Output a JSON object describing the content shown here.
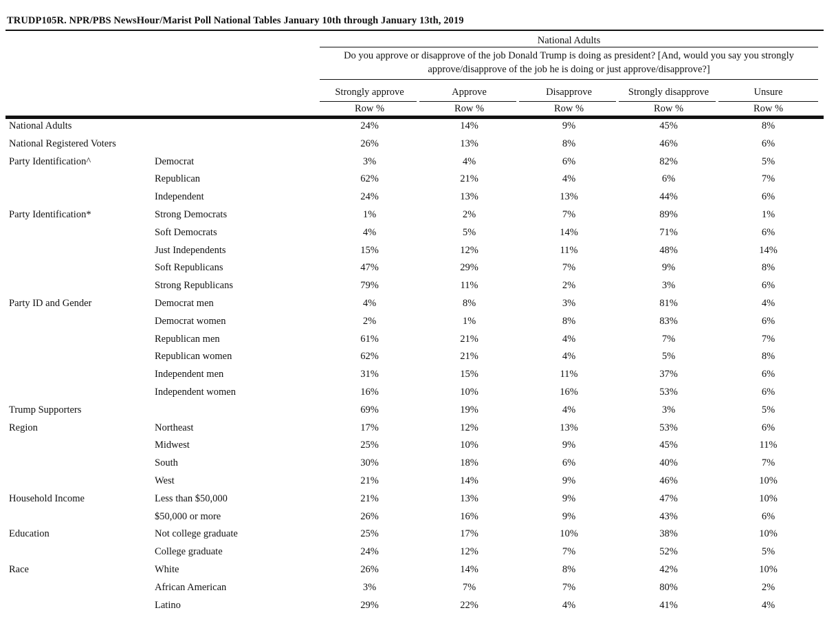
{
  "title": "TRUDP105R. NPR/PBS NewsHour/Marist Poll National Tables January 10th through January 13th, 2019",
  "group_header": "National Adults",
  "question_line1": "Do you approve or disapprove of the job Donald Trump is doing as president? [And, would you say you strongly",
  "question_line2": "approve/disapprove of the job he is doing or just approve/disapprove?]",
  "columns": [
    "Strongly approve",
    "Approve",
    "Disapprove",
    "Strongly disapprove",
    "Unsure"
  ],
  "col_sub": "Row %",
  "rows": [
    {
      "group": "National Adults",
      "sub": "",
      "values": [
        "24%",
        "14%",
        "9%",
        "45%",
        "8%"
      ]
    },
    {
      "group": "National Registered Voters",
      "sub": "",
      "values": [
        "26%",
        "13%",
        "8%",
        "46%",
        "6%"
      ]
    },
    {
      "group": "Party Identification^",
      "sub": "Democrat",
      "values": [
        "3%",
        "4%",
        "6%",
        "82%",
        "5%"
      ]
    },
    {
      "group": "",
      "sub": "Republican",
      "values": [
        "62%",
        "21%",
        "4%",
        "6%",
        "7%"
      ]
    },
    {
      "group": "",
      "sub": "Independent",
      "values": [
        "24%",
        "13%",
        "13%",
        "44%",
        "6%"
      ]
    },
    {
      "group": "Party Identification*",
      "sub": "Strong Democrats",
      "values": [
        "1%",
        "2%",
        "7%",
        "89%",
        "1%"
      ]
    },
    {
      "group": "",
      "sub": "Soft Democrats",
      "values": [
        "4%",
        "5%",
        "14%",
        "71%",
        "6%"
      ]
    },
    {
      "group": "",
      "sub": "Just Independents",
      "values": [
        "15%",
        "12%",
        "11%",
        "48%",
        "14%"
      ]
    },
    {
      "group": "",
      "sub": "Soft Republicans",
      "values": [
        "47%",
        "29%",
        "7%",
        "9%",
        "8%"
      ]
    },
    {
      "group": "",
      "sub": "Strong Republicans",
      "values": [
        "79%",
        "11%",
        "2%",
        "3%",
        "6%"
      ]
    },
    {
      "group": "Party ID and Gender",
      "sub": "Democrat men",
      "values": [
        "4%",
        "8%",
        "3%",
        "81%",
        "4%"
      ]
    },
    {
      "group": "",
      "sub": "Democrat women",
      "values": [
        "2%",
        "1%",
        "8%",
        "83%",
        "6%"
      ]
    },
    {
      "group": "",
      "sub": "Republican men",
      "values": [
        "61%",
        "21%",
        "4%",
        "7%",
        "7%"
      ]
    },
    {
      "group": "",
      "sub": "Republican women",
      "values": [
        "62%",
        "21%",
        "4%",
        "5%",
        "8%"
      ]
    },
    {
      "group": "",
      "sub": "Independent men",
      "values": [
        "31%",
        "15%",
        "11%",
        "37%",
        "6%"
      ]
    },
    {
      "group": "",
      "sub": "Independent women",
      "values": [
        "16%",
        "10%",
        "16%",
        "53%",
        "6%"
      ]
    },
    {
      "group": "Trump Supporters",
      "sub": "",
      "values": [
        "69%",
        "19%",
        "4%",
        "3%",
        "5%"
      ]
    },
    {
      "group": "Region",
      "sub": "Northeast",
      "values": [
        "17%",
        "12%",
        "13%",
        "53%",
        "6%"
      ]
    },
    {
      "group": "",
      "sub": "Midwest",
      "values": [
        "25%",
        "10%",
        "9%",
        "45%",
        "11%"
      ]
    },
    {
      "group": "",
      "sub": "South",
      "values": [
        "30%",
        "18%",
        "6%",
        "40%",
        "7%"
      ]
    },
    {
      "group": "",
      "sub": "West",
      "values": [
        "21%",
        "14%",
        "9%",
        "46%",
        "10%"
      ]
    },
    {
      "group": "Household Income",
      "sub": "Less than $50,000",
      "values": [
        "21%",
        "13%",
        "9%",
        "47%",
        "10%"
      ]
    },
    {
      "group": "",
      "sub": "$50,000 or more",
      "values": [
        "26%",
        "16%",
        "9%",
        "43%",
        "6%"
      ]
    },
    {
      "group": "Education",
      "sub": "Not college graduate",
      "values": [
        "25%",
        "17%",
        "10%",
        "38%",
        "10%"
      ]
    },
    {
      "group": "",
      "sub": "College graduate",
      "values": [
        "24%",
        "12%",
        "7%",
        "52%",
        "5%"
      ]
    },
    {
      "group": "Race",
      "sub": "White",
      "values": [
        "26%",
        "14%",
        "8%",
        "42%",
        "10%"
      ]
    },
    {
      "group": "",
      "sub": "African American",
      "values": [
        "3%",
        "7%",
        "7%",
        "80%",
        "2%"
      ]
    },
    {
      "group": "",
      "sub": "Latino",
      "values": [
        "29%",
        "22%",
        "4%",
        "41%",
        "4%"
      ]
    }
  ]
}
